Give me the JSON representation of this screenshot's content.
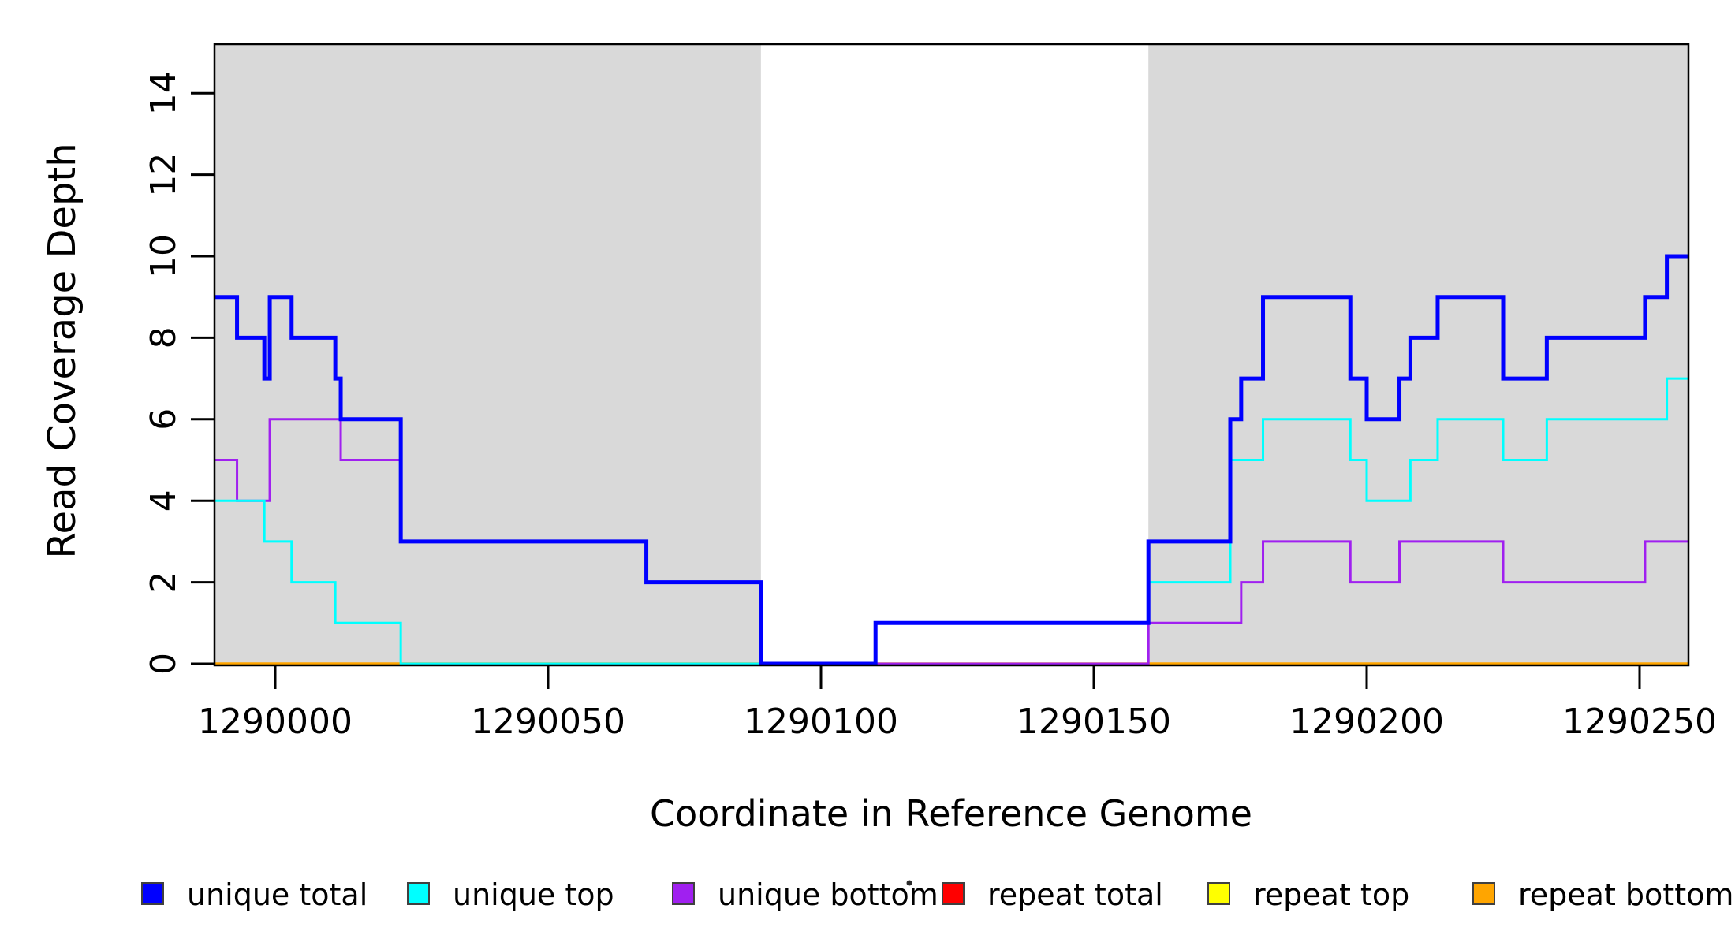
{
  "chart_data": {
    "type": "line",
    "subtype": "step",
    "title": "",
    "xlabel": "Coordinate in Reference Genome",
    "ylabel": "Read Coverage Depth",
    "xlim": [
      1289989,
      1290259
    ],
    "ylim": [
      0,
      15.2
    ],
    "xticks": [
      1290000,
      1290050,
      1290100,
      1290150,
      1290200,
      1290250
    ],
    "yticks": [
      0,
      2,
      4,
      6,
      8,
      10,
      12,
      14
    ],
    "grid": false,
    "plot_background": "#FFFFFF",
    "shaded_region_color": "#D9D9D9",
    "shaded_regions": [
      {
        "x0": 1289989,
        "x1": 1290089
      },
      {
        "x0": 1290160,
        "x1": 1290259
      }
    ],
    "series": [
      {
        "name": "repeat total",
        "color": "#FF0000",
        "line_width": 3,
        "steps": [
          [
            1289989,
            0
          ]
        ]
      },
      {
        "name": "repeat top",
        "color": "#FFFF00",
        "line_width": 3,
        "steps": [
          [
            1289989,
            0
          ]
        ]
      },
      {
        "name": "repeat bottom",
        "color": "#FFA500",
        "line_width": 3.5,
        "steps": [
          [
            1289989,
            0
          ]
        ]
      },
      {
        "name": "unique bottom",
        "color": "#A020F0",
        "line_width": 3,
        "steps": [
          [
            1289989,
            5
          ],
          [
            1289993,
            4
          ],
          [
            1289999,
            6
          ],
          [
            1290012,
            5
          ],
          [
            1290023,
            3
          ],
          [
            1290068,
            2
          ],
          [
            1290089,
            0
          ],
          [
            1290160,
            1
          ],
          [
            1290177,
            2
          ],
          [
            1290181,
            3
          ],
          [
            1290197,
            2
          ],
          [
            1290206,
            3
          ],
          [
            1290225,
            2
          ],
          [
            1290251,
            3
          ]
        ]
      },
      {
        "name": "unique top",
        "color": "#00FFFF",
        "line_width": 3,
        "steps": [
          [
            1289989,
            4
          ],
          [
            1289998,
            3
          ],
          [
            1290003,
            2
          ],
          [
            1290011,
            1
          ],
          [
            1290023,
            0
          ],
          [
            1290110,
            1
          ],
          [
            1290160,
            2
          ],
          [
            1290175,
            5
          ],
          [
            1290181,
            6
          ],
          [
            1290197,
            5
          ],
          [
            1290200,
            4
          ],
          [
            1290208,
            5
          ],
          [
            1290213,
            6
          ],
          [
            1290225,
            5
          ],
          [
            1290233,
            6
          ],
          [
            1290255,
            7
          ]
        ]
      },
      {
        "name": "unique total",
        "color": "#0000FF",
        "line_width": 5,
        "steps": [
          [
            1289989,
            9
          ],
          [
            1289993,
            8
          ],
          [
            1289998,
            7
          ],
          [
            1289999,
            9
          ],
          [
            1290003,
            8
          ],
          [
            1290011,
            7
          ],
          [
            1290012,
            6
          ],
          [
            1290023,
            3
          ],
          [
            1290068,
            2
          ],
          [
            1290089,
            0
          ],
          [
            1290110,
            1
          ],
          [
            1290160,
            3
          ],
          [
            1290175,
            6
          ],
          [
            1290177,
            7
          ],
          [
            1290181,
            9
          ],
          [
            1290197,
            7
          ],
          [
            1290200,
            6
          ],
          [
            1290206,
            7
          ],
          [
            1290208,
            8
          ],
          [
            1290213,
            9
          ],
          [
            1290225,
            7
          ],
          [
            1290233,
            8
          ],
          [
            1290251,
            9
          ],
          [
            1290255,
            10
          ]
        ]
      }
    ],
    "legend": {
      "position": "bottom",
      "swatch_border_color": "#404040",
      "items": [
        {
          "label": "unique total",
          "color": "#0000FF"
        },
        {
          "label": "unique top",
          "color": "#00FFFF"
        },
        {
          "label": "unique bottom",
          "color": "#A020F0"
        },
        {
          "label": "repeat total",
          "color": "#FF0000"
        },
        {
          "label": "repeat top",
          "color": "#FFFF00"
        },
        {
          "label": "repeat bottom",
          "color": "#FFA500"
        }
      ]
    }
  }
}
